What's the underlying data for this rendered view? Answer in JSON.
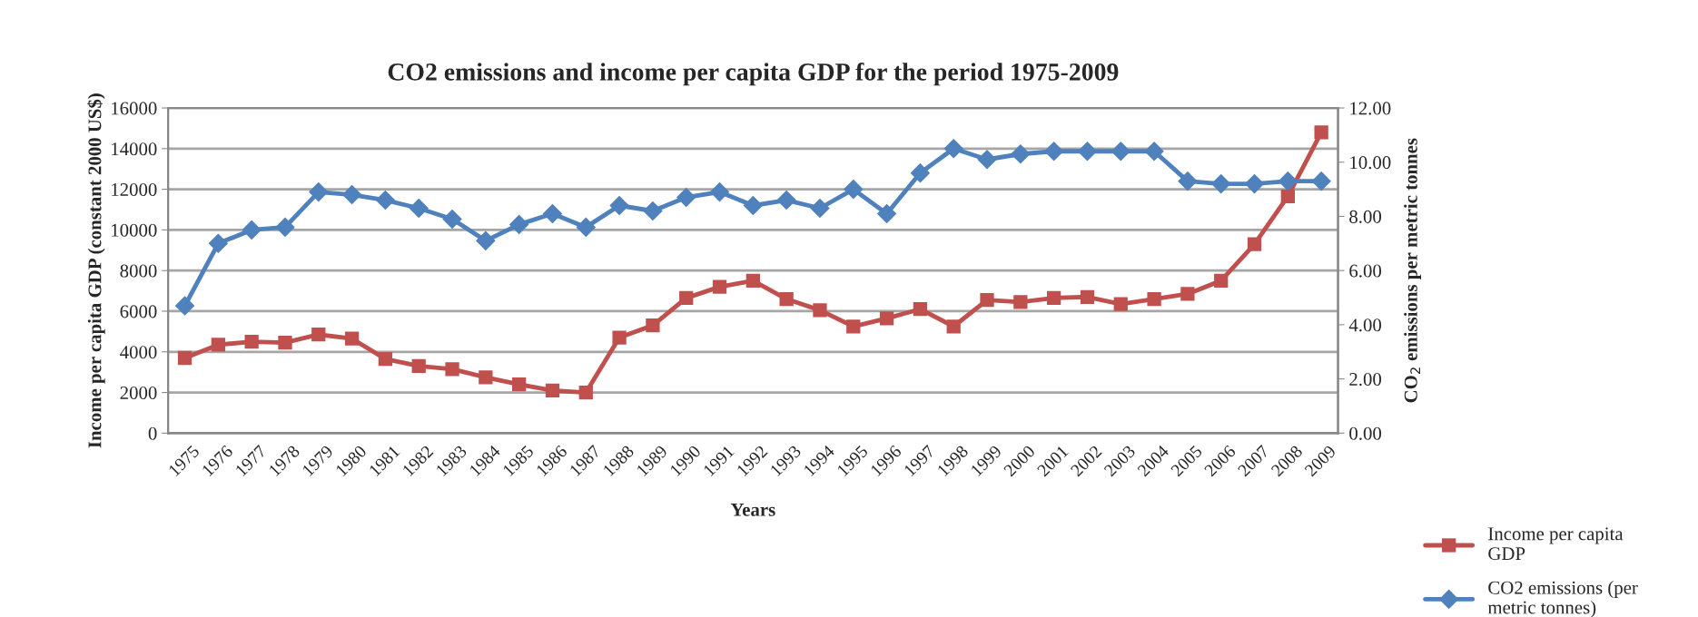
{
  "chart_data": {
    "type": "line",
    "title": "CO2 emissions and income per capita GDP for the period 1975-2009",
    "xlabel": "Years",
    "ylabel": "Income per capita GDP (constant 2000 US$)",
    "y2label": "CO$_{2}$ emissions per metric tonnes",
    "categories": [
      "1975",
      "1976",
      "1977",
      "1978",
      "1979",
      "1980",
      "1981",
      "1982",
      "1983",
      "1984",
      "1985",
      "1986",
      "1987",
      "1988",
      "1989",
      "1990",
      "1991",
      "1992",
      "1993",
      "1994",
      "1995",
      "1996",
      "1997",
      "1998",
      "1999",
      "2000",
      "2001",
      "2002",
      "2003",
      "2004",
      "2005",
      "2006",
      "2007",
      "2008",
      "2009"
    ],
    "series": [
      {
        "name": "Income per capita GDP",
        "color": "#c0504d",
        "marker": "square",
        "values": [
          3700,
          4350,
          4500,
          4450,
          4850,
          4650,
          3650,
          3300,
          3150,
          2750,
          2400,
          2100,
          2000,
          4700,
          5300,
          6650,
          7200,
          7500,
          6600,
          6050,
          5250,
          5650,
          6100,
          5250,
          6550,
          6450,
          6650,
          6700,
          6350,
          6600,
          6850,
          7500,
          9300,
          11650,
          14800
        ]
      },
      {
        "name": "CO2 emissions (per metric tonnes)",
        "color": "#4f81bd",
        "marker": "diamond",
        "axis": "y2",
        "values": [
          4.7,
          7.0,
          7.5,
          7.6,
          8.9,
          8.8,
          8.6,
          8.3,
          7.9,
          7.1,
          7.7,
          8.1,
          7.6,
          8.4,
          8.2,
          8.7,
          8.9,
          8.4,
          8.6,
          8.3,
          9.0,
          8.1,
          9.6,
          10.5,
          10.1,
          10.3,
          10.4,
          10.4,
          10.4,
          10.4,
          9.3,
          9.2,
          9.2,
          9.3,
          9.3
        ]
      }
    ],
    "ylim": [
      0,
      16000
    ],
    "yticks": [
      0,
      2000,
      4000,
      6000,
      8000,
      10000,
      12000,
      14000,
      16000
    ],
    "y2lim": [
      0,
      12
    ],
    "y2ticks": [
      {
        "value": 0,
        "label": "0.00"
      },
      {
        "value": 2,
        "label": "2.00"
      },
      {
        "value": 4,
        "label": "4.00"
      },
      {
        "value": 6,
        "label": "6.00"
      },
      {
        "value": 8,
        "label": "8.00"
      },
      {
        "value": 10,
        "label": "10.00"
      },
      {
        "value": 12,
        "label": "12.00"
      }
    ],
    "grid": "y",
    "legend": "bottom right",
    "line_style": "solid"
  }
}
